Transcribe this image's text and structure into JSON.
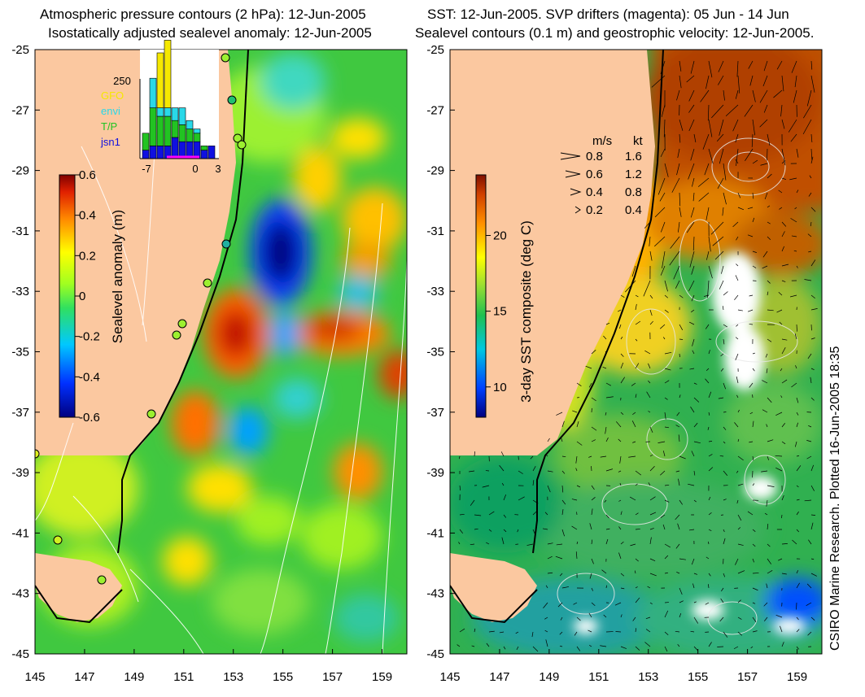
{
  "left_panel": {
    "title_line1": "Atmospheric pressure contours (2 hPa): 12-Jun-2005",
    "title_line2": "Isostatically adjusted sealevel anomaly: 12-Jun-2005",
    "colorbar": {
      "label": "Sealevel anomaly (m)",
      "ticks": [
        "0.6",
        "0.4",
        "0.2",
        "0",
        "-0.2",
        "-0.4",
        "-0.6"
      ],
      "range": [
        -0.6,
        0.6
      ]
    },
    "inset_histogram": {
      "ymax_label": "250",
      "legend": [
        {
          "name": "GFO",
          "color": "#f5e800"
        },
        {
          "name": "envi",
          "color": "#29d8e8"
        },
        {
          "name": "T/P",
          "color": "#22c322"
        },
        {
          "name": "jsn1",
          "color": "#1010e0"
        }
      ],
      "x_ticks": [
        "-7",
        "0",
        "3"
      ],
      "bars": [
        {
          "gfo": 0,
          "envi": 0,
          "tp": 40,
          "jsn1": 20
        },
        {
          "gfo": 0,
          "envi": 70,
          "tp": 90,
          "jsn1": 30
        },
        {
          "gfo": 130,
          "envi": 20,
          "tp": 70,
          "jsn1": 30
        },
        {
          "gfo": 160,
          "envi": 20,
          "tp": 70,
          "jsn1": 30
        },
        {
          "gfo": 0,
          "envi": 30,
          "tp": 40,
          "jsn1": 50
        },
        {
          "gfo": 0,
          "envi": 40,
          "tp": 40,
          "jsn1": 40
        },
        {
          "gfo": 0,
          "envi": 20,
          "tp": 30,
          "jsn1": 40
        },
        {
          "gfo": 0,
          "envi": 10,
          "tp": 20,
          "jsn1": 40
        },
        {
          "gfo": 0,
          "envi": 0,
          "tp": 10,
          "jsn1": 20
        },
        {
          "gfo": 0,
          "envi": 0,
          "tp": 0,
          "jsn1": 30
        }
      ]
    }
  },
  "right_panel": {
    "title_line1": "SST: 12-Jun-2005. SVP drifters (magenta): 05 Jun - 14 Jun",
    "title_line2": "Sealevel contours (0.1 m) and geostrophic velocity: 12-Jun-2005.",
    "colorbar": {
      "label": "3-day SST composite (deg C)",
      "ticks": [
        "20",
        "15",
        "10"
      ],
      "range": [
        8,
        24
      ]
    },
    "velocity_legend": {
      "header_ms": "m/s",
      "header_kt": "kt",
      "rows": [
        {
          "ms": "0.8",
          "kt": "1.6"
        },
        {
          "ms": "0.6",
          "kt": "1.2"
        },
        {
          "ms": "0.4",
          "kt": "0.8"
        },
        {
          "ms": "0.2",
          "kt": "0.4"
        }
      ]
    }
  },
  "axes": {
    "lat_ticks": [
      "-25",
      "-27",
      "-29",
      "-31",
      "-33",
      "-35",
      "-37",
      "-39",
      "-41",
      "-43",
      "-45"
    ],
    "lon_ticks": [
      "145",
      "147",
      "149",
      "151",
      "153",
      "155",
      "157",
      "159"
    ],
    "lon_range": [
      145,
      160
    ],
    "lat_range": [
      -45,
      -25
    ]
  },
  "credit": "CSIRO Marine Research. Plotted 16-Jun-2005 18:35",
  "colors": {
    "land": "#fbc8a0",
    "ocean_bg": "#55d04a"
  }
}
